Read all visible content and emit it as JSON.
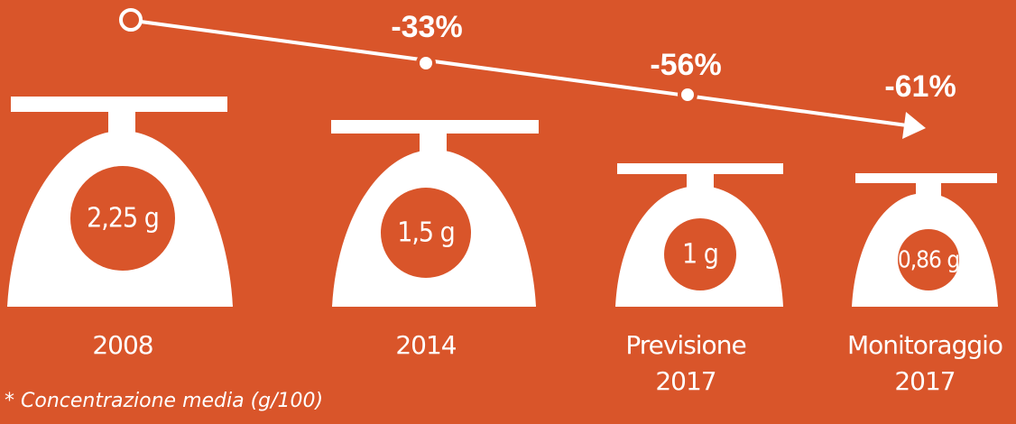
{
  "items": [
    {
      "label_lines": [
        "2008"
      ],
      "weight": "2,25 g"
    },
    {
      "label_lines": [
        "2014"
      ],
      "weight": "1,5 g",
      "change": "-33%"
    },
    {
      "label_lines": [
        "Previsione",
        "2017"
      ],
      "weight": "1 g",
      "change": "-56%"
    },
    {
      "label_lines": [
        "Monitoraggio",
        "2017"
      ],
      "weight": "0,86 g",
      "change": "-61%"
    }
  ],
  "footnote": "* Concentrazione media (g/100)"
}
